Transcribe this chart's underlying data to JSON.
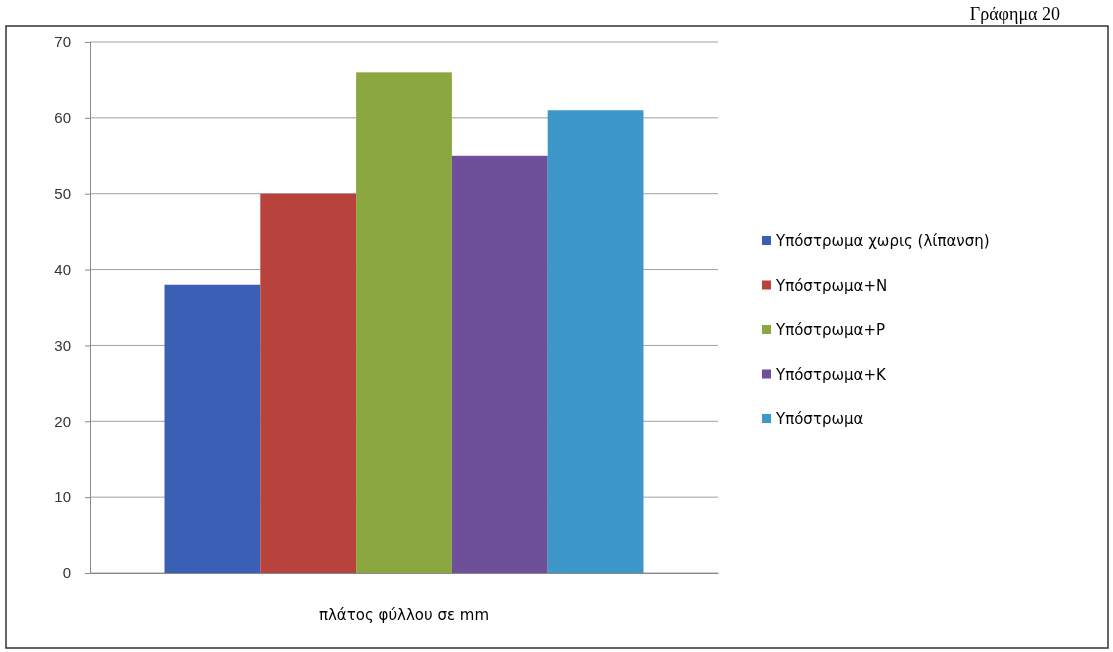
{
  "chart_data": {
    "type": "bar",
    "title": "Γράφημα 20",
    "xlabel": "πλάτος φύλλου σε mm",
    "categories": [
      null
    ],
    "series": [
      {
        "name": "Υπόστρωμα χωρις (λίπανση)",
        "color": "#3a5fb5",
        "values": [
          38
        ]
      },
      {
        "name": "Υπόστρωμα+N",
        "color": "#b8423c",
        "values": [
          50
        ]
      },
      {
        "name": "Υπόστρωμα+P",
        "color": "#8aa83f",
        "values": [
          66
        ]
      },
      {
        "name": "Υπόστρωμα+K",
        "color": "#6e4f99",
        "values": [
          55
        ]
      },
      {
        "name": "Υπόστρωμα",
        "color": "#3d97c8",
        "values": [
          61
        ]
      }
    ],
    "ylim": [
      0,
      70
    ],
    "yticks": [
      0,
      10,
      20,
      30,
      40,
      50,
      60,
      70
    ],
    "grid": "y",
    "legend": "right"
  }
}
